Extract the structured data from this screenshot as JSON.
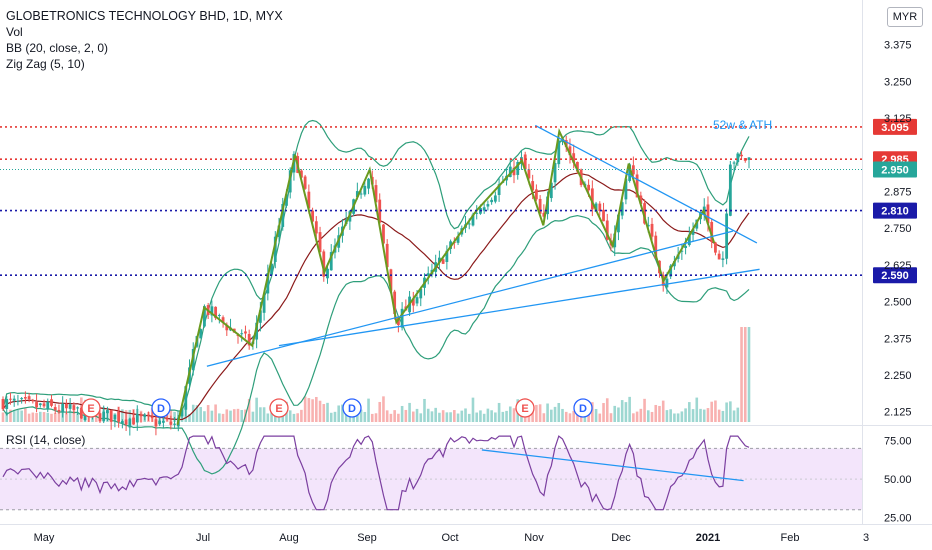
{
  "legend": {
    "title": "GLOBETRONICS TECHNOLOGY BHD, 1D, MYX",
    "vol": "Vol",
    "bb": "BB (20, close, 2, 0)",
    "zigzag": "Zig Zag (5, 10)"
  },
  "currency": "MYR",
  "annotation": "52w & ATH",
  "rsi_label": "RSI (14, close)",
  "colors": {
    "up": "#26a69a",
    "down": "#ef5350",
    "bb": "#2e9e7a",
    "bb_basis": "#8b1a1a",
    "zigzag": "#6a9a1f",
    "trend": "#2196f3",
    "red_level": "#e53935",
    "blue_level": "#1a1aa8",
    "rsi": "#7b3fa0",
    "rsi_band": "#f3e5fb"
  },
  "chart_data": [
    {
      "type": "candlestick",
      "title": "GLOBETRONICS TECHNOLOGY BHD, 1D, MYX",
      "ylim": [
        2.09,
        3.5
      ],
      "y_ticks": [
        "3.375",
        "3.250",
        "3.125",
        "2.875",
        "2.750",
        "2.625",
        "2.500",
        "2.375",
        "2.250",
        "2.125"
      ],
      "x_ticks": [
        "May",
        "Jul",
        "Aug",
        "Sep",
        "Oct",
        "Nov",
        "Dec",
        "2021",
        "Feb",
        "3"
      ],
      "price_labels": [
        {
          "value": 3.095,
          "label": "3.095",
          "color": "#e53935",
          "line": "dotted"
        },
        {
          "value": 2.985,
          "label": "2.985",
          "color": "#e53935",
          "line": "dotted"
        },
        {
          "value": 2.95,
          "label": "2.950",
          "color": "#26a69a",
          "line": "dotted-thin"
        },
        {
          "value": 2.81,
          "label": "2.810",
          "color": "#1a1aa8",
          "line": "dotted"
        },
        {
          "value": 2.59,
          "label": "2.590",
          "color": "#1a1aa8",
          "line": "dotted"
        }
      ],
      "events": [
        {
          "label": "E",
          "month": "Jun"
        },
        {
          "label": "D",
          "month": "Jun"
        },
        {
          "label": "E",
          "month": "Aug"
        },
        {
          "label": "D",
          "month": "Aug"
        },
        {
          "label": "E",
          "month": "Nov"
        },
        {
          "label": "D",
          "month": "Nov"
        }
      ],
      "zigzag": [
        {
          "date": "2020-06-20",
          "value": 2.08
        },
        {
          "date": "2020-06-30",
          "value": 2.48
        },
        {
          "date": "2020-07-18",
          "value": 2.35
        },
        {
          "date": "2020-08-03",
          "value": 3.0
        },
        {
          "date": "2020-08-14",
          "value": 2.6
        },
        {
          "date": "2020-08-31",
          "value": 2.95
        },
        {
          "date": "2020-09-10",
          "value": 2.43
        },
        {
          "date": "2020-10-10",
          "value": 2.81
        },
        {
          "date": "2020-10-27",
          "value": 2.98
        },
        {
          "date": "2020-11-04",
          "value": 2.76
        },
        {
          "date": "2020-11-10",
          "value": 3.08
        },
        {
          "date": "2020-11-30",
          "value": 2.69
        },
        {
          "date": "2020-12-06",
          "value": 2.97
        },
        {
          "date": "2020-12-19",
          "value": 2.57
        },
        {
          "date": "2021-01-03",
          "value": 2.81
        },
        {
          "date": "2021-01-07",
          "value": 2.7
        }
      ],
      "trendlines": [
        {
          "from": {
            "date": "2020-07-01",
            "value": 2.28
          },
          "to": {
            "date": "2021-01-14",
            "value": 2.74
          }
        },
        {
          "from": {
            "date": "2020-07-28",
            "value": 2.35
          },
          "to": {
            "date": "2021-01-24",
            "value": 2.61
          }
        },
        {
          "from": {
            "date": "2020-11-01",
            "value": 3.1
          },
          "to": {
            "date": "2021-01-23",
            "value": 2.7
          }
        }
      ]
    },
    {
      "type": "line",
      "title": "RSI (14, close)",
      "ylim": [
        22,
        82
      ],
      "y_ticks": [
        "75.00",
        "50.00",
        "25.00"
      ],
      "bands": [
        30,
        70
      ],
      "trendline": {
        "from": {
          "date": "2020-10-12",
          "value": 69
        },
        "to": {
          "date": "2021-01-18",
          "value": 49
        }
      }
    }
  ]
}
